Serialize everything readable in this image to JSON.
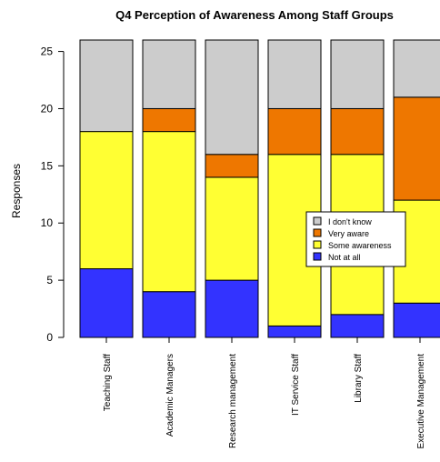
{
  "colors": {
    "not_at_all": "#3333ff",
    "some_awareness": "#ffff33",
    "very_aware": "#ee7700",
    "dont_know": "#cccccc"
  },
  "chart_data": {
    "type": "bar",
    "stacked": true,
    "title": "Q4 Perception of Awareness Among Staff Groups",
    "xlabel": "",
    "ylabel": "Responses",
    "ylim": [
      0,
      26
    ],
    "yticks": [
      0,
      5,
      10,
      15,
      20,
      25
    ],
    "grid": false,
    "legend_position": "center-right",
    "categories": [
      "Teaching Staff",
      "Academic Managers",
      "Research management",
      "IT Service Staff",
      "Library Staff",
      "Executive Management"
    ],
    "series": [
      {
        "name": "Not at all",
        "color": "#3333ff",
        "values": [
          6,
          4,
          5,
          1,
          2,
          3
        ]
      },
      {
        "name": "Some awareness",
        "color": "#ffff33",
        "values": [
          12,
          14,
          9,
          15,
          14,
          9
        ]
      },
      {
        "name": "Very aware",
        "color": "#ee7700",
        "values": [
          0,
          2,
          2,
          4,
          4,
          9
        ]
      },
      {
        "name": "I don't know",
        "color": "#cccccc",
        "values": [
          8,
          6,
          10,
          6,
          6,
          5
        ]
      }
    ],
    "legend_order": [
      "I don't know",
      "Very aware",
      "Some awareness",
      "Not at all"
    ]
  }
}
